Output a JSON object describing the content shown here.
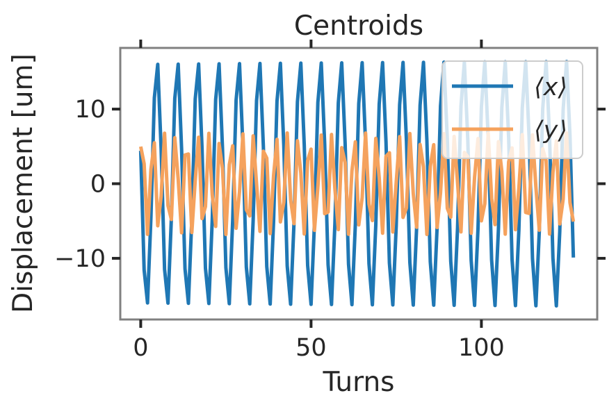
{
  "chart_data": {
    "type": "line",
    "title": "Centroids",
    "xlabel": "Turns",
    "ylabel": "Displacement [um]",
    "xlim": [
      -6,
      134
    ],
    "ylim": [
      -18.2,
      18.2
    ],
    "xticks": [
      0,
      50,
      100
    ],
    "xtick_labels": [
      "0",
      "50",
      "100"
    ],
    "yticks": [
      -10,
      0,
      10
    ],
    "ytick_labels": [
      "−10",
      "0",
      "10"
    ],
    "grid": false,
    "legend_position": "top-right",
    "series": [
      {
        "name": "⟨x⟩",
        "color": "#1f77b4",
        "amplitude": 16.5,
        "tune": 0.1665,
        "phase": 1.3,
        "n_turns": 128
      },
      {
        "name": "⟨y⟩",
        "color": "#f5a25d",
        "amplitude": 6.8,
        "tune": 0.305,
        "phase": -0.75,
        "n_turns": 128
      }
    ]
  }
}
